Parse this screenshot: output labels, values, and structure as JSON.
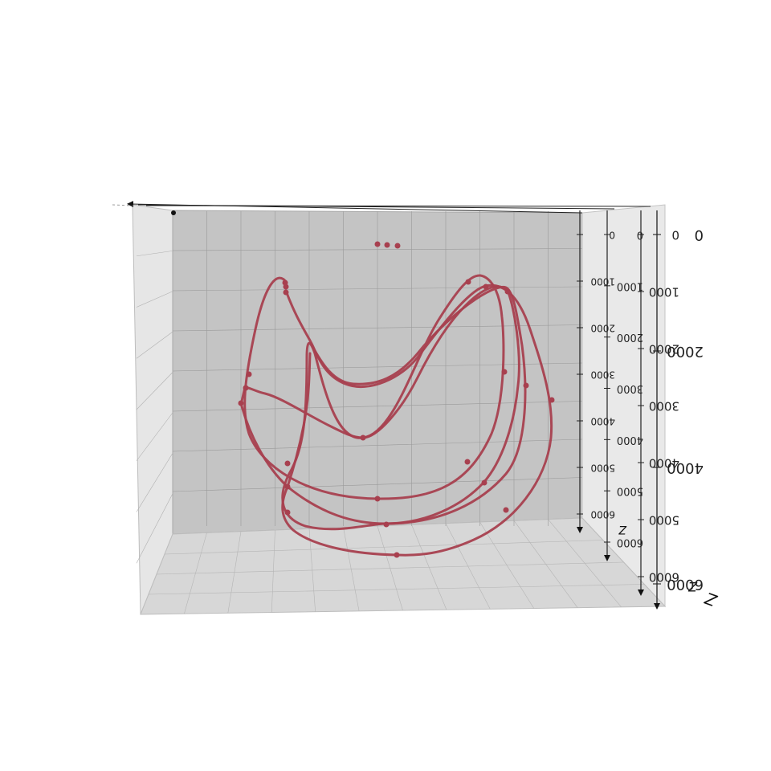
{
  "chart_data": {
    "type": "line3d",
    "title": "",
    "axes": {
      "z": {
        "label": "Z",
        "range": [
          0,
          6000
        ],
        "ticks": [
          "0",
          "1000",
          "2000",
          "3000",
          "4000",
          "5000",
          "6000"
        ],
        "front_ticks": [
          "0",
          "2000",
          "4000",
          "6000"
        ]
      }
    },
    "grid": true,
    "series": [
      {
        "color": "#a8404f",
        "style": "line-with-markers",
        "loops": 3
      }
    ]
  }
}
